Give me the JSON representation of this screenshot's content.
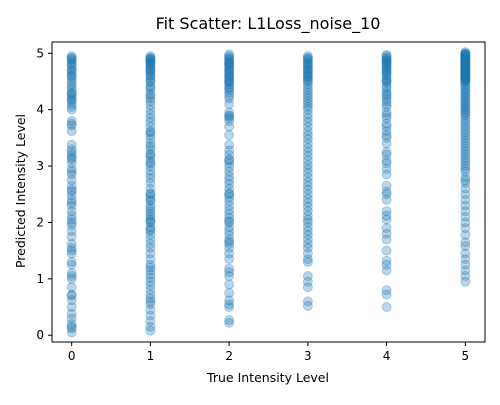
{
  "chart_data": {
    "type": "scatter",
    "title": "Fit Scatter: L1Loss_noise_10",
    "xlabel": "True Intensity Level",
    "ylabel": "Predicted Intensity Level",
    "xlim": [
      -0.25,
      5.25
    ],
    "ylim": [
      -0.12,
      5.2
    ],
    "x_ticks": [
      0,
      1,
      2,
      3,
      4,
      5
    ],
    "y_ticks": [
      0,
      1,
      2,
      3,
      4,
      5
    ],
    "x_tick_labels": [
      "0",
      "1",
      "2",
      "3",
      "4",
      "5"
    ],
    "y_tick_labels": [
      "0",
      "1",
      "2",
      "3",
      "4",
      "5"
    ],
    "grid": false,
    "legend": "none",
    "marker_color": "#1f77b4",
    "marker_alpha": 0.3,
    "series": [
      {
        "x": [
          0,
          0,
          0,
          0,
          0,
          0,
          0,
          0,
          0,
          0,
          0,
          0,
          0,
          0,
          0,
          0,
          0,
          0,
          0,
          0,
          0,
          0,
          0,
          0,
          0,
          0,
          0,
          0,
          0,
          0,
          0,
          0,
          0,
          0,
          0,
          0,
          0,
          0,
          0,
          0,
          0,
          0,
          0,
          0,
          0,
          0,
          0,
          0,
          0,
          0,
          0,
          0,
          0,
          0,
          0,
          0,
          0,
          0,
          0,
          0,
          0,
          0,
          0,
          0,
          0,
          0,
          0,
          0,
          0,
          0,
          0,
          0,
          0,
          0,
          0,
          0
        ],
        "y": [
          0.05,
          0.12,
          0.2,
          0.3,
          0.38,
          0.5,
          0.62,
          0.72,
          0.85,
          1.0,
          1.1,
          1.25,
          1.3,
          1.45,
          1.55,
          1.62,
          1.75,
          1.85,
          1.95,
          2.05,
          2.12,
          2.2,
          2.3,
          2.4,
          2.48,
          2.58,
          2.65,
          2.75,
          2.85,
          2.95,
          3.05,
          3.12,
          3.2,
          3.3,
          3.38,
          3.62,
          3.72,
          3.8,
          4.0,
          4.1,
          4.15,
          4.2,
          4.25,
          4.3,
          4.35,
          4.45,
          4.55,
          4.6,
          4.65,
          4.7,
          4.75,
          4.8,
          4.85,
          4.9,
          4.95,
          0.15,
          0.7,
          1.5,
          2.35,
          2.9,
          3.15,
          3.75,
          4.05,
          4.4,
          4.5,
          4.6,
          4.8,
          4.88,
          1.05,
          2.0,
          2.55,
          3.25,
          4.18,
          4.28,
          4.7,
          4.92
        ]
      },
      {
        "x": [
          1,
          1,
          1,
          1,
          1,
          1,
          1,
          1,
          1,
          1,
          1,
          1,
          1,
          1,
          1,
          1,
          1,
          1,
          1,
          1,
          1,
          1,
          1,
          1,
          1,
          1,
          1,
          1,
          1,
          1,
          1,
          1,
          1,
          1,
          1,
          1,
          1,
          1,
          1,
          1,
          1,
          1,
          1,
          1,
          1,
          1,
          1,
          1,
          1,
          1,
          1,
          1,
          1,
          1,
          1,
          1,
          1,
          1,
          1,
          1,
          1,
          1,
          1,
          1,
          1,
          1,
          1,
          1,
          1,
          1,
          1,
          1,
          1,
          1,
          1,
          1,
          1,
          1,
          1,
          1,
          1,
          1,
          1,
          1,
          1,
          1,
          1,
          1,
          1,
          1
        ],
        "y": [
          0.08,
          0.15,
          0.25,
          0.35,
          0.45,
          0.55,
          0.65,
          0.72,
          0.8,
          0.88,
          0.95,
          1.02,
          1.08,
          1.15,
          1.25,
          1.35,
          1.45,
          1.55,
          1.62,
          1.7,
          1.78,
          1.85,
          1.92,
          2.0,
          2.05,
          2.1,
          2.15,
          2.2,
          2.25,
          2.3,
          2.38,
          2.45,
          2.52,
          2.6,
          2.7,
          2.78,
          2.85,
          2.92,
          3.0,
          3.08,
          3.15,
          3.22,
          3.3,
          3.35,
          3.4,
          3.48,
          3.55,
          3.62,
          3.7,
          3.78,
          3.85,
          3.92,
          4.0,
          4.08,
          4.15,
          4.2,
          4.28,
          4.35,
          4.42,
          4.5,
          4.55,
          4.6,
          4.65,
          4.7,
          4.75,
          4.8,
          4.82,
          4.85,
          4.88,
          4.9,
          4.92,
          4.95,
          4.6,
          4.72,
          4.78,
          4.86,
          4.9,
          4.68,
          4.5,
          3.2,
          2.5,
          2.02,
          1.2,
          0.6,
          4.4,
          3.6,
          3.05,
          2.4,
          1.88,
          4.25
        ]
      },
      {
        "x": [
          2,
          2,
          2,
          2,
          2,
          2,
          2,
          2,
          2,
          2,
          2,
          2,
          2,
          2,
          2,
          2,
          2,
          2,
          2,
          2,
          2,
          2,
          2,
          2,
          2,
          2,
          2,
          2,
          2,
          2,
          2,
          2,
          2,
          2,
          2,
          2,
          2,
          2,
          2,
          2,
          2,
          2,
          2,
          2,
          2,
          2,
          2,
          2,
          2,
          2,
          2,
          2,
          2,
          2,
          2,
          2,
          2,
          2,
          2,
          2,
          2,
          2,
          2,
          2,
          2,
          2,
          2,
          2,
          2,
          2,
          2,
          2,
          2,
          2,
          2,
          2,
          2,
          2
        ],
        "y": [
          0.22,
          0.27,
          0.5,
          0.55,
          0.62,
          0.75,
          0.9,
          1.05,
          1.12,
          1.18,
          1.35,
          1.45,
          1.55,
          1.62,
          1.7,
          1.78,
          1.85,
          1.92,
          2.0,
          2.08,
          2.15,
          2.22,
          2.3,
          2.38,
          2.45,
          2.52,
          2.6,
          2.68,
          2.75,
          2.82,
          2.9,
          2.98,
          3.05,
          3.12,
          3.2,
          3.28,
          3.38,
          3.55,
          3.7,
          3.8,
          3.85,
          3.9,
          3.95,
          4.1,
          4.2,
          4.25,
          4.3,
          4.38,
          4.45,
          4.5,
          4.55,
          4.6,
          4.65,
          4.7,
          4.75,
          4.8,
          4.85,
          4.9,
          4.95,
          4.98,
          4.88,
          4.78,
          4.68,
          4.58,
          4.48,
          4.4,
          4.52,
          4.62,
          4.72,
          4.82,
          4.92,
          2.5,
          2.02,
          1.66,
          3.1,
          3.88,
          4.35,
          4.82
        ]
      },
      {
        "x": [
          3,
          3,
          3,
          3,
          3,
          3,
          3,
          3,
          3,
          3,
          3,
          3,
          3,
          3,
          3,
          3,
          3,
          3,
          3,
          3,
          3,
          3,
          3,
          3,
          3,
          3,
          3,
          3,
          3,
          3,
          3,
          3,
          3,
          3,
          3,
          3,
          3,
          3,
          3,
          3,
          3,
          3,
          3,
          3,
          3,
          3,
          3,
          3,
          3,
          3,
          3,
          3,
          3,
          3,
          3,
          3,
          3,
          3,
          3,
          3,
          3,
          3,
          3,
          3,
          3,
          3,
          3,
          3,
          3,
          3
        ],
        "y": [
          0.52,
          0.6,
          0.85,
          0.95,
          1.05,
          1.3,
          1.35,
          1.45,
          1.55,
          1.62,
          1.7,
          1.78,
          1.85,
          1.92,
          2.0,
          2.05,
          2.12,
          2.2,
          2.28,
          2.35,
          2.42,
          2.5,
          2.58,
          2.65,
          2.72,
          2.8,
          2.88,
          2.95,
          3.02,
          3.1,
          3.18,
          3.25,
          3.32,
          3.4,
          3.48,
          3.55,
          3.62,
          3.7,
          3.78,
          3.85,
          3.92,
          4.0,
          4.05,
          4.1,
          4.15,
          4.2,
          4.25,
          4.3,
          4.35,
          4.4,
          4.45,
          4.5,
          4.55,
          4.6,
          4.65,
          4.7,
          4.75,
          4.8,
          4.85,
          4.9,
          4.95,
          4.88,
          4.78,
          4.68,
          4.58,
          4.62,
          4.72,
          4.82,
          4.92,
          4.52
        ]
      },
      {
        "x": [
          4,
          4,
          4,
          4,
          4,
          4,
          4,
          4,
          4,
          4,
          4,
          4,
          4,
          4,
          4,
          4,
          4,
          4,
          4,
          4,
          4,
          4,
          4,
          4,
          4,
          4,
          4,
          4,
          4,
          4,
          4,
          4,
          4,
          4,
          4,
          4,
          4,
          4,
          4,
          4,
          4,
          4,
          4,
          4,
          4,
          4,
          4,
          4,
          4,
          4,
          4,
          4,
          4,
          4,
          4,
          4,
          4,
          4,
          4,
          4,
          4,
          4
        ],
        "y": [
          0.5,
          0.72,
          0.8,
          1.15,
          1.25,
          1.32,
          1.5,
          1.7,
          1.8,
          1.9,
          2.05,
          2.12,
          2.2,
          2.4,
          2.5,
          2.55,
          2.65,
          2.85,
          2.95,
          3.05,
          3.1,
          3.2,
          3.25,
          3.4,
          3.5,
          3.55,
          3.62,
          3.7,
          3.75,
          3.85,
          3.9,
          3.95,
          4.05,
          4.1,
          4.15,
          4.2,
          4.25,
          4.28,
          4.32,
          4.38,
          4.42,
          4.48,
          4.52,
          4.55,
          4.6,
          4.65,
          4.7,
          4.72,
          4.75,
          4.8,
          4.82,
          4.85,
          4.88,
          4.9,
          4.92,
          4.95,
          4.97,
          4.62,
          4.68,
          4.78,
          4.86,
          4.5
        ]
      },
      {
        "x": [
          5,
          5,
          5,
          5,
          5,
          5,
          5,
          5,
          5,
          5,
          5,
          5,
          5,
          5,
          5,
          5,
          5,
          5,
          5,
          5,
          5,
          5,
          5,
          5,
          5,
          5,
          5,
          5,
          5,
          5,
          5,
          5,
          5,
          5,
          5,
          5,
          5,
          5,
          5,
          5,
          5,
          5,
          5,
          5,
          5,
          5,
          5,
          5,
          5,
          5,
          5,
          5,
          5,
          5,
          5,
          5,
          5,
          5,
          5,
          5,
          5,
          5,
          5,
          5,
          5,
          5,
          5,
          5,
          5,
          5,
          5,
          5,
          5,
          5,
          5,
          5,
          5,
          5,
          5,
          5,
          5,
          5,
          5,
          5,
          5,
          5,
          5,
          5,
          5,
          5,
          5,
          5,
          5,
          5,
          5,
          5,
          5,
          5,
          5,
          5,
          5,
          5,
          5,
          5,
          5,
          5,
          5,
          5,
          5,
          5
        ],
        "y": [
          0.95,
          1.05,
          1.15,
          1.25,
          1.35,
          1.45,
          1.58,
          1.65,
          1.78,
          1.9,
          2.0,
          2.1,
          2.2,
          2.3,
          2.4,
          2.5,
          2.6,
          2.7,
          2.75,
          2.8,
          2.9,
          2.95,
          3.0,
          3.05,
          3.1,
          3.15,
          3.2,
          3.25,
          3.3,
          3.35,
          3.4,
          3.45,
          3.5,
          3.55,
          3.6,
          3.65,
          3.7,
          3.75,
          3.8,
          3.85,
          3.9,
          3.93,
          3.96,
          4.0,
          4.03,
          4.06,
          4.1,
          4.13,
          4.16,
          4.2,
          4.23,
          4.26,
          4.3,
          4.33,
          4.36,
          4.4,
          4.43,
          4.46,
          4.5,
          4.52,
          4.54,
          4.56,
          4.58,
          4.6,
          4.62,
          4.64,
          4.66,
          4.68,
          4.7,
          4.72,
          4.74,
          4.76,
          4.78,
          4.8,
          4.82,
          4.84,
          4.86,
          4.88,
          4.9,
          4.92,
          4.94,
          4.96,
          4.98,
          5.0,
          5.02,
          4.99,
          4.97,
          4.95,
          4.93,
          4.91,
          4.89,
          4.87,
          4.85,
          4.83,
          4.81,
          4.79,
          4.77,
          4.75,
          4.73,
          4.71,
          4.69,
          4.67,
          4.65,
          4.63,
          4.61,
          4.59,
          4.57,
          4.55,
          4.53,
          4.51
        ]
      }
    ]
  }
}
